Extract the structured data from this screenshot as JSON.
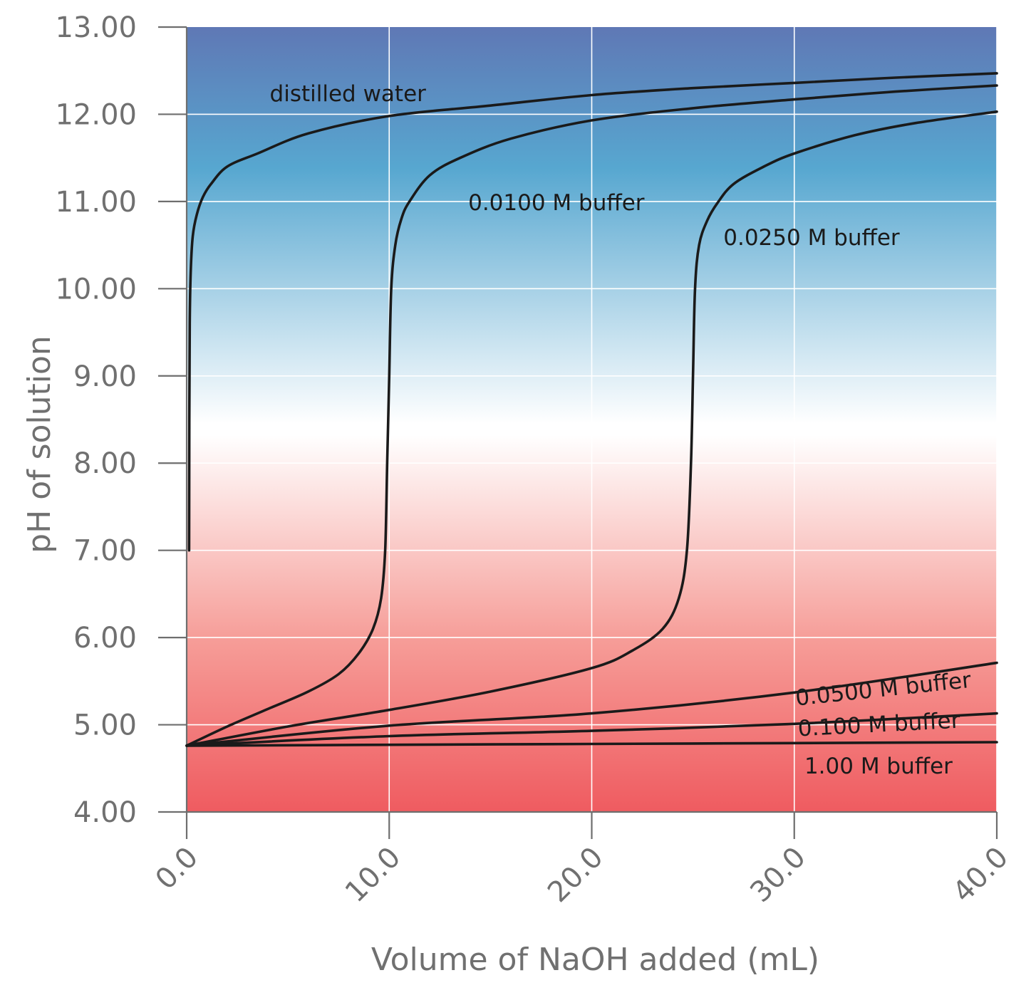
{
  "chart_data": {
    "type": "line",
    "xlabel": "Volume of NaOH added (mL)",
    "ylabel": "pH of solution",
    "xlim": [
      0,
      40
    ],
    "ylim": [
      4,
      13
    ],
    "x_ticks": [
      "0.0",
      "10.0",
      "20.0",
      "30.0",
      "40.0"
    ],
    "y_ticks": [
      "4.00",
      "5.00",
      "6.00",
      "7.00",
      "8.00",
      "9.00",
      "10.00",
      "11.00",
      "12.00",
      "13.00"
    ],
    "grid": true,
    "background_gradient": {
      "top": "#5f78b5",
      "upper": "#57a7d0",
      "neutral": "#ffffff",
      "lower": "#f69d98",
      "bottom": "#ef5b60"
    },
    "curve_color": "#1a1a1a",
    "series": [
      {
        "name": "distilled water",
        "x": [
          0.12,
          0.13,
          0.15,
          0.2,
          0.3,
          0.5,
          0.8,
          1.2,
          2.0,
          3.5,
          6.0,
          10.0,
          15.0,
          20.0,
          25.0,
          30.0,
          35.0,
          40.0
        ],
        "y": [
          7.0,
          8.5,
          9.6,
          10.2,
          10.6,
          10.85,
          11.05,
          11.2,
          11.4,
          11.55,
          11.78,
          11.98,
          12.1,
          12.22,
          12.3,
          12.36,
          12.42,
          12.47
        ]
      },
      {
        "name": "0.0100 M buffer",
        "x": [
          0,
          2.0,
          4.0,
          6.0,
          7.5,
          8.5,
          9.2,
          9.6,
          9.8,
          9.9,
          10.0,
          10.1,
          10.3,
          10.6,
          11.0,
          12.0,
          13.5,
          16.0,
          20.0,
          25.0,
          30.0,
          35.0,
          40.0
        ],
        "y": [
          4.76,
          4.98,
          5.18,
          5.38,
          5.58,
          5.82,
          6.1,
          6.45,
          7.0,
          8.0,
          9.0,
          10.0,
          10.5,
          10.8,
          11.0,
          11.3,
          11.5,
          11.72,
          11.93,
          12.07,
          12.17,
          12.26,
          12.33
        ]
      },
      {
        "name": "0.0250 M buffer",
        "x": [
          0,
          5.0,
          10.0,
          15.0,
          20.0,
          22.0,
          23.5,
          24.3,
          24.7,
          24.9,
          25.0,
          25.1,
          25.3,
          25.7,
          26.2,
          27.0,
          28.5,
          30.0,
          33.0,
          36.0,
          40.0
        ],
        "y": [
          4.76,
          4.98,
          5.17,
          5.38,
          5.65,
          5.85,
          6.1,
          6.45,
          7.0,
          8.0,
          9.0,
          10.0,
          10.5,
          10.78,
          10.98,
          11.2,
          11.4,
          11.55,
          11.76,
          11.9,
          12.03
        ]
      },
      {
        "name": "0.0500 M buffer",
        "x": [
          0,
          10.0,
          20.0,
          30.0,
          40.0
        ],
        "y": [
          4.76,
          4.99,
          5.13,
          5.37,
          5.71
        ]
      },
      {
        "name": "0.100 M  buffer",
        "x": [
          0,
          10.0,
          20.0,
          30.0,
          40.0
        ],
        "y": [
          4.76,
          4.87,
          4.93,
          5.01,
          5.13
        ]
      },
      {
        "name": "1.00 M buffer",
        "x": [
          0,
          10.0,
          20.0,
          30.0,
          40.0
        ],
        "y": [
          4.76,
          4.77,
          4.78,
          4.79,
          4.8
        ]
      }
    ],
    "annotations": [
      {
        "text": "distilled water",
        "x": 4.1,
        "y": 12.15,
        "angle": 0
      },
      {
        "text": "0.0100 M buffer",
        "x": 13.9,
        "y": 10.9,
        "angle": 0
      },
      {
        "text": "0.0250 M buffer",
        "x": 26.5,
        "y": 10.5,
        "angle": 0
      },
      {
        "text": "0.0500 M buffer",
        "x": 30.1,
        "y": 5.22,
        "angle": -6
      },
      {
        "text": "0.100 M  buffer",
        "x": 30.2,
        "y": 4.87,
        "angle": -3
      },
      {
        "text": "1.00 M buffer",
        "x": 30.5,
        "y": 4.44,
        "angle": 0
      }
    ]
  }
}
